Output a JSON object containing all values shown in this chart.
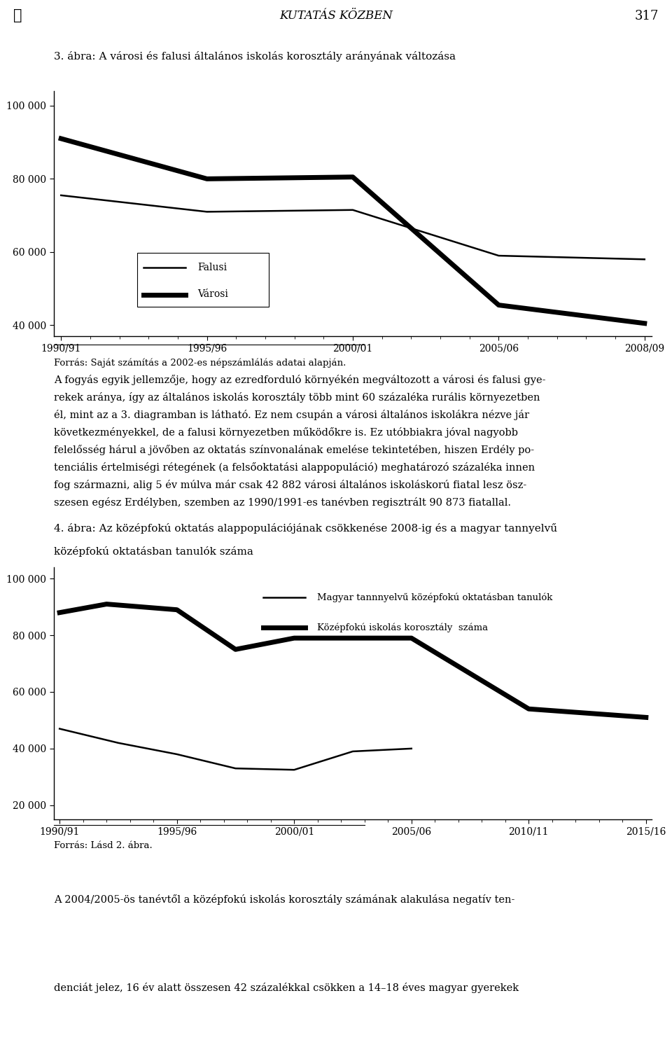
{
  "page_title": "KUTATÁS KÖZBEN",
  "page_number": "317",
  "chart1": {
    "title": "3. ábra: A városi és falusi általános iskolás korosztály arányának változása",
    "x_labels": [
      "1990/91",
      "1995/96",
      "2000/01",
      "2005/06",
      "2008/09"
    ],
    "x_values": [
      0,
      1,
      2,
      3,
      4
    ],
    "falusi_x": [
      0,
      1,
      2,
      3,
      4
    ],
    "falusi_y": [
      75500,
      71000,
      71500,
      59000,
      58000
    ],
    "varosi_x": [
      0,
      1,
      2,
      3,
      4
    ],
    "varosi_y": [
      91000,
      80000,
      80500,
      45500,
      40500
    ],
    "ylim": [
      37000,
      104000
    ],
    "yticks": [
      40000,
      60000,
      80000,
      100000
    ],
    "ytick_labels": [
      "40 000",
      "60 000",
      "80 000",
      "100 000"
    ],
    "legend_falusi": "Falusi",
    "legend_varosi": "Városi",
    "source_text": "Forrás: Saját számítás a 2002-es népszámlálás adatai alapján."
  },
  "chart2": {
    "title1": "4. ábra: Az középfokú oktatás alappopulációjának csökkenése 2008-ig és a magyar tannyelvű",
    "title2": "középfokú oktatásban tanulók száma",
    "x_labels": [
      "1990/91",
      "1995/96",
      "2000/01",
      "2005/06",
      "2010/11",
      "2015/16"
    ],
    "x_ticks": [
      0,
      1,
      2,
      3,
      4,
      5
    ],
    "kozep_x": [
      0,
      0.4,
      1,
      1.5,
      2,
      3,
      4,
      5
    ],
    "kozep_y": [
      88000,
      91000,
      89000,
      75000,
      79000,
      79000,
      54000,
      51000
    ],
    "magyar_x": [
      0,
      0.5,
      1,
      1.5,
      2,
      2.5,
      3
    ],
    "magyar_y": [
      47000,
      42000,
      38000,
      33000,
      32500,
      39000,
      40000
    ],
    "ylim": [
      15000,
      104000
    ],
    "yticks": [
      20000,
      40000,
      60000,
      80000,
      100000
    ],
    "ytick_labels": [
      "20 000",
      "40 000",
      "60 000",
      "80 000",
      "100 000"
    ],
    "legend_magyar": "Magyar tannnyelvű középfokú oktatásban tanulók",
    "legend_kozep": "Középfokú iskolás korosztály  száma",
    "source_text": "Forrás: Lásd 2. ábra."
  },
  "body1_lines": [
    "A fogyás egyik jellemzője, hogy az ezredforduló környékén megváltozott a városi és falusi gye-",
    "rekek aránya, így az általános iskolás korosztály több mint 60 százaléka rurális környezetben",
    "él, mint az a 3. diagramban is látható. Ez nem csupán a városi általános iskolákra nézve jár",
    "következményekkel, de a falusi környezetben működőkre is. Ez utóbbiakra jóval nagyobb",
    "felelősség hárul a jövőben az oktatás színvonalának emelése tekintetében, hiszen Erdély po-",
    "tenciális értelmiségi rétegének (a felsőoktatási alappopuláció) meghatározó százaléka innen",
    "fog származni, alig 5 év múlva már csak 42 882 városi általános iskoláskorú fiatal lesz ösz-",
    "szesen egész Erdélyben, szemben az 1990/1991-es tanévben regisztrált 90 873 fiatallal."
  ],
  "body2_lines": [
    "A 2004/2005-ös tanévtől a középfokú iskolás korosztály számának alakulása negatív ten-",
    "denciát jelez, 16 év alatt összesen 42 százalékkal csökken a 14–18 éves magyar gyerekek"
  ]
}
